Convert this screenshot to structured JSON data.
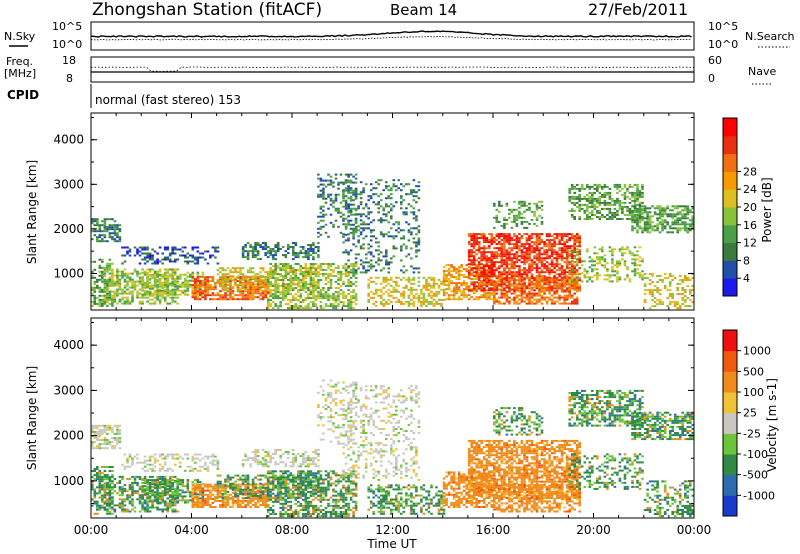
{
  "header": {
    "title": "Zhongshan Station (fitACF)",
    "beam": "Beam 14",
    "date": "27/Feb/2011"
  },
  "noise_panel": {
    "left_label": "N.Sky",
    "right_label": "N.Search",
    "left_ticks": [
      "10^5",
      "10^0"
    ],
    "right_ticks": [
      "10^5",
      "10^0"
    ]
  },
  "freq_panel": {
    "left_label_line1": "Freq.",
    "left_label_line2": "[MHz]",
    "right_label": "Nave",
    "left_ticks": [
      "18",
      "8"
    ],
    "right_ticks": [
      "60",
      "0"
    ]
  },
  "cpid": {
    "label": "CPID",
    "text": "normal (fast stereo) 153"
  },
  "time_axis": {
    "label": "Time UT",
    "ticks": [
      "00:00",
      "04:00",
      "08:00",
      "12:00",
      "16:00",
      "20:00",
      "00:00"
    ]
  },
  "chart_data": [
    {
      "type": "heatmap",
      "name": "power",
      "ylabel": "Slant Range [km]",
      "y_ticks": [
        "1000",
        "2000",
        "3000",
        "4000"
      ],
      "ylim": [
        180,
        4600
      ],
      "xlim_hours": [
        0,
        24
      ],
      "colorbar": {
        "label": "Power [dB]",
        "ticks": [
          "4",
          "8",
          "12",
          "16",
          "20",
          "24",
          "28"
        ],
        "colors": [
          "#1a1aee",
          "#1f4fa8",
          "#3c7a3c",
          "#4aa046",
          "#88c23a",
          "#dcc020",
          "#f59a00",
          "#f07010",
          "#e83010",
          "#ff0000"
        ]
      }
    },
    {
      "type": "heatmap",
      "name": "velocity",
      "ylabel": "Slant Range [km]",
      "y_ticks": [
        "1000",
        "2000",
        "3000",
        "4000"
      ],
      "ylim": [
        180,
        4600
      ],
      "xlim_hours": [
        0,
        24
      ],
      "colorbar": {
        "label": "Velocity [m s-1]",
        "ticks": [
          "1000",
          "500",
          "100",
          "25",
          "-25",
          "-100",
          "-500",
          "-1000"
        ],
        "colors": [
          "#1a3acd",
          "#2d6ab0",
          "#2f8a45",
          "#6cc43a",
          "#c8c8c0",
          "#f2c236",
          "#f08a1a",
          "#f05a10",
          "#ee1010"
        ]
      }
    }
  ]
}
